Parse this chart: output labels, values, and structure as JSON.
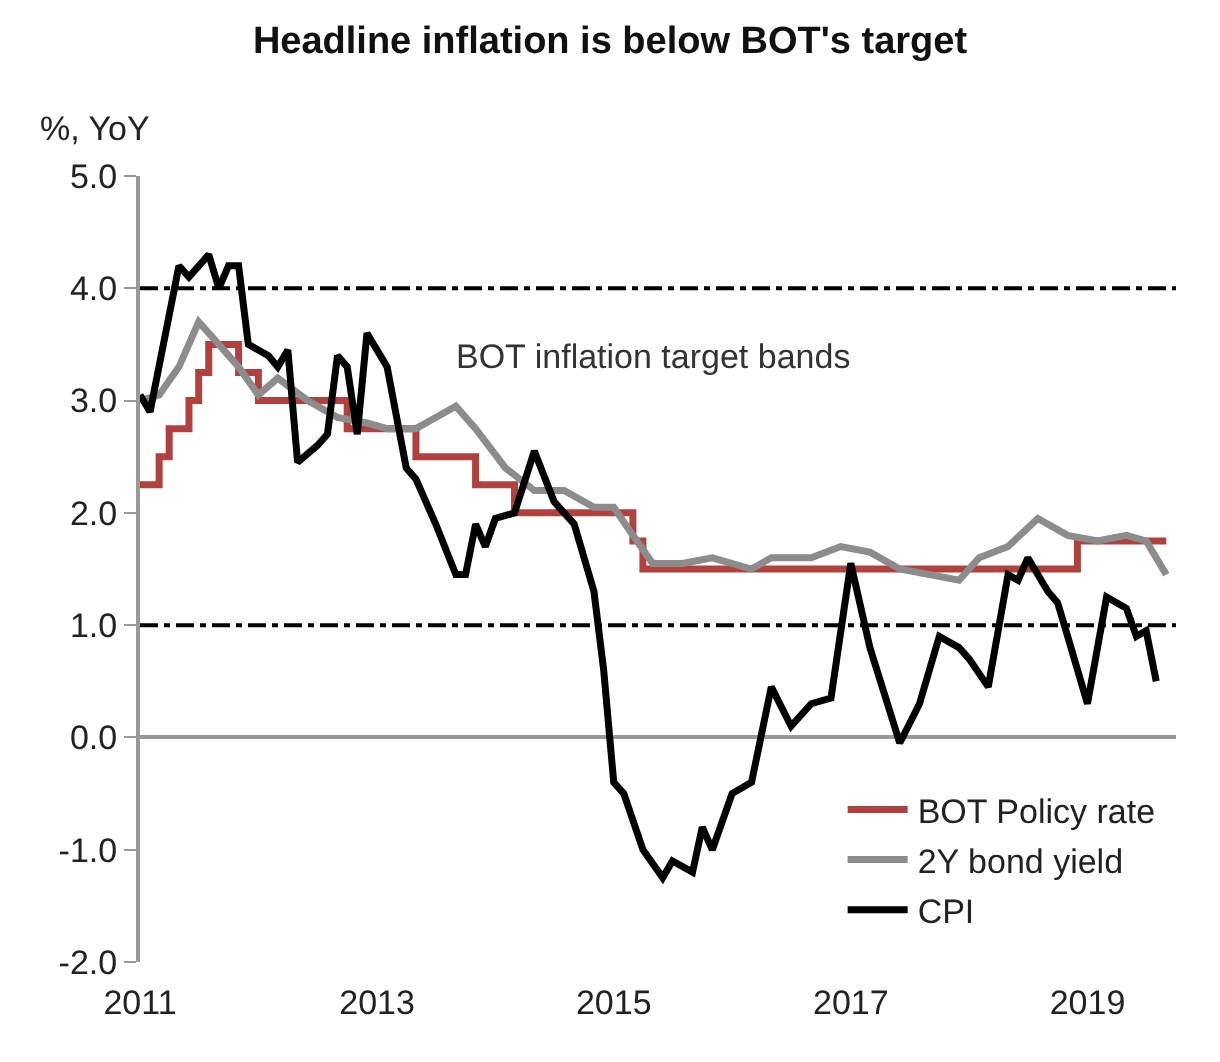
{
  "chart_data": {
    "type": "line",
    "title": "Headline inflation is below BOT's target",
    "ylabel": "%, YoY",
    "xlim": [
      "2011-01-01",
      "2019-10-01"
    ],
    "xticks": [
      {
        "value": "2011-01-01",
        "label": "2011"
      },
      {
        "value": "2013-01-01",
        "label": "2013"
      },
      {
        "value": "2015-01-01",
        "label": "2015"
      },
      {
        "value": "2017-01-01",
        "label": "2017"
      },
      {
        "value": "2019-01-01",
        "label": "2019"
      }
    ],
    "ylim": [
      -2,
      5
    ],
    "yticks": [
      {
        "value": -2,
        "label": "-2.0"
      },
      {
        "value": -1,
        "label": "-1.0"
      },
      {
        "value": 0,
        "label": "0.0"
      },
      {
        "value": 1,
        "label": "1.0"
      },
      {
        "value": 2,
        "label": "2.0"
      },
      {
        "value": 3,
        "label": "3.0"
      },
      {
        "value": 4,
        "label": "4.0"
      },
      {
        "value": 5,
        "label": "5.0"
      }
    ],
    "grid": false,
    "legend": "bottom right",
    "line_style": "solid",
    "marker": "none",
    "ref_lines": [
      {
        "axis": "y",
        "value": 4,
        "color": "#000000",
        "line_style": "dashdot"
      },
      {
        "axis": "y",
        "value": 1,
        "color": "#000000",
        "line_style": "dashdot"
      }
    ],
    "annotations": [
      "BOT inflation target bands"
    ],
    "series": [
      {
        "name": "BOT Policy rate",
        "type": "step",
        "color": "#b0413e",
        "x": [
          "2011-01",
          "2011-03",
          "2011-04",
          "2011-06",
          "2011-07",
          "2011-08",
          "2011-11",
          "2012-01",
          "2012-10",
          "2013-05",
          "2013-11",
          "2014-03",
          "2015-03",
          "2015-04",
          "2018-12",
          "2019-09"
        ],
        "values": [
          2.25,
          2.5,
          2.75,
          3.0,
          3.25,
          3.5,
          3.25,
          3.0,
          2.75,
          2.5,
          2.25,
          2.0,
          1.75,
          1.5,
          1.75,
          1.75
        ]
      },
      {
        "name": "2Y bond yield",
        "color": "#8c8c8c",
        "x": [
          "2011-01",
          "2011-03",
          "2011-05",
          "2011-07",
          "2011-09",
          "2011-11",
          "2012-01",
          "2012-03",
          "2012-06",
          "2012-09",
          "2012-12",
          "2013-02",
          "2013-05",
          "2013-07",
          "2013-09",
          "2013-11",
          "2014-02",
          "2014-05",
          "2014-08",
          "2014-11",
          "2015-01",
          "2015-03",
          "2015-05",
          "2015-08",
          "2015-11",
          "2016-03",
          "2016-05",
          "2016-09",
          "2016-12",
          "2017-03",
          "2017-06",
          "2017-09",
          "2017-12",
          "2018-02",
          "2018-05",
          "2018-08",
          "2018-11",
          "2019-02",
          "2019-05",
          "2019-07",
          "2019-09"
        ],
        "values": [
          3.0,
          3.05,
          3.3,
          3.7,
          3.5,
          3.3,
          3.05,
          3.2,
          3.0,
          2.85,
          2.8,
          2.75,
          2.75,
          2.85,
          2.95,
          2.75,
          2.4,
          2.2,
          2.2,
          2.05,
          2.05,
          1.8,
          1.55,
          1.55,
          1.6,
          1.5,
          1.6,
          1.6,
          1.7,
          1.65,
          1.5,
          1.45,
          1.4,
          1.6,
          1.7,
          1.95,
          1.8,
          1.75,
          1.8,
          1.75,
          1.45
        ]
      },
      {
        "name": "CPI",
        "color": "#000000",
        "x": [
          "2011-01",
          "2011-02",
          "2011-05",
          "2011-06",
          "2011-08",
          "2011-09",
          "2011-10",
          "2011-11",
          "2011-12",
          "2012-02",
          "2012-03",
          "2012-04",
          "2012-05",
          "2012-07",
          "2012-08",
          "2012-09",
          "2012-10",
          "2012-11",
          "2012-12",
          "2013-02",
          "2013-04",
          "2013-05",
          "2013-07",
          "2013-09",
          "2013-10",
          "2013-11",
          "2013-12",
          "2014-01",
          "2014-03",
          "2014-05",
          "2014-07",
          "2014-09",
          "2014-11",
          "2014-12",
          "2015-01",
          "2015-02",
          "2015-04",
          "2015-06",
          "2015-07",
          "2015-09",
          "2015-10",
          "2015-11",
          "2016-01",
          "2016-03",
          "2016-05",
          "2016-07",
          "2016-09",
          "2016-11",
          "2017-01",
          "2017-03",
          "2017-06",
          "2017-08",
          "2017-10",
          "2017-12",
          "2018-01",
          "2018-03",
          "2018-05",
          "2018-06",
          "2018-07",
          "2018-09",
          "2018-10",
          "2018-11",
          "2019-01",
          "2019-03",
          "2019-05",
          "2019-06",
          "2019-07",
          "2019-08"
        ],
        "values": [
          3.05,
          2.9,
          4.2,
          4.1,
          4.3,
          4.0,
          4.2,
          4.2,
          3.5,
          3.4,
          3.3,
          3.45,
          2.45,
          2.6,
          2.7,
          3.4,
          3.3,
          2.7,
          3.6,
          3.3,
          2.4,
          2.3,
          1.9,
          1.45,
          1.45,
          1.9,
          1.7,
          1.95,
          2.0,
          2.55,
          2.1,
          1.9,
          1.3,
          0.6,
          -0.4,
          -0.5,
          -1.0,
          -1.25,
          -1.1,
          -1.2,
          -0.8,
          -1.0,
          -0.5,
          -0.4,
          0.45,
          0.1,
          0.3,
          0.35,
          1.55,
          0.8,
          -0.05,
          0.3,
          0.9,
          0.8,
          0.7,
          0.45,
          1.45,
          1.4,
          1.6,
          1.3,
          1.2,
          0.9,
          0.3,
          1.25,
          1.15,
          0.9,
          0.95,
          0.5
        ]
      }
    ]
  }
}
